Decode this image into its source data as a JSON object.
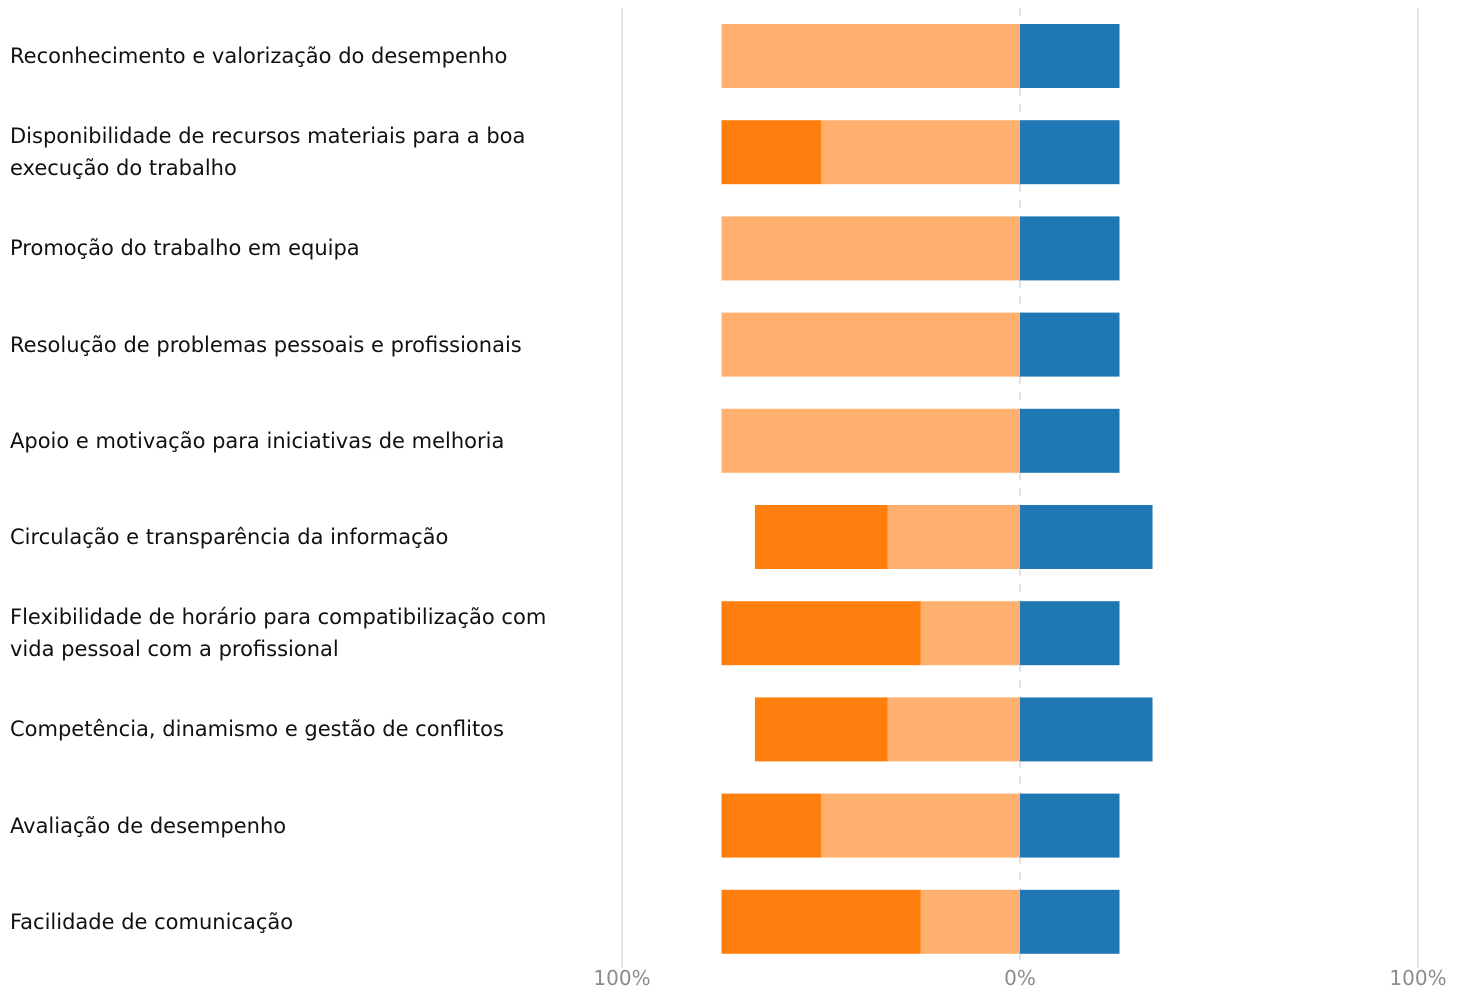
{
  "chart_data": {
    "type": "bar",
    "orientation": "horizontal",
    "stacking": "diverging",
    "categories": [
      "Reconhecimento e valorização do desempenho",
      "Disponibilidade de recursos materiais para a boa execução do trabalho",
      "Promoção do trabalho em equipa",
      "Resolução de problemas pessoais e profissionais",
      "Apoio e motivação para iniciativas de melhoria",
      "Circulação e transparência da informação",
      "Flexibilidade de horário para compatibilização com vida pessoal com a profissional",
      "Competência, dinamismo e gestão de conflitos",
      "Avaliação de desempenho",
      "Facilidade de comunicação"
    ],
    "series": [
      {
        "side": "negative",
        "color": "#ff7f0e",
        "values": [
          0,
          25,
          0,
          0,
          0,
          33.3,
          50,
          33.3,
          25,
          50
        ]
      },
      {
        "side": "negative",
        "color": "#ffb06e",
        "values": [
          75,
          50,
          75,
          75,
          75,
          33.3,
          25,
          33.3,
          50,
          25
        ]
      },
      {
        "side": "positive",
        "color": "#1f77b4",
        "values": [
          25,
          25,
          25,
          25,
          25,
          33.3,
          25,
          33.3,
          25,
          25
        ]
      }
    ],
    "xlim": [
      -100,
      100
    ],
    "ticks": [
      "100%",
      "0%",
      "100%"
    ],
    "grid": true,
    "legend": "none"
  }
}
